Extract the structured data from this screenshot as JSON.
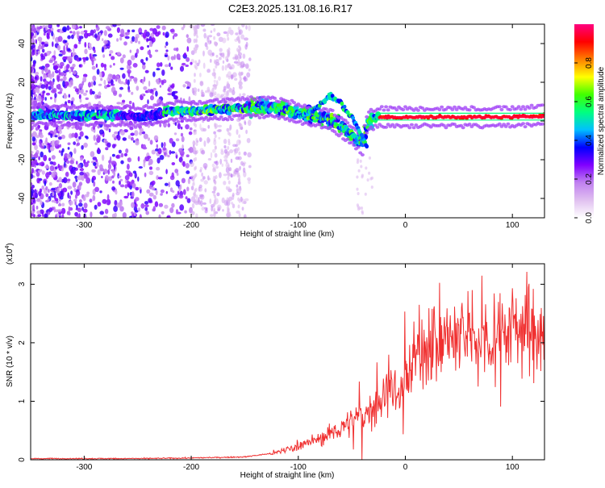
{
  "title": "C2E3.2025.131.08.16.R17",
  "colors": {
    "snr_line": "#f03030",
    "axis": "#000000",
    "background": "#ffffff",
    "colorbar_stops": [
      "#ffffff",
      "#e0c0f0",
      "#c080f0",
      "#8000ff",
      "#0000ff",
      "#00c0ff",
      "#00ff80",
      "#40ff00",
      "#ffff00",
      "#ff8000",
      "#ff0000",
      "#ff0080"
    ]
  },
  "chart_data": [
    {
      "type": "heatmap",
      "xlabel": "Height of straight line (km)",
      "ylabel": "Frequency (Hz)",
      "xlim": [
        -350,
        130
      ],
      "ylim": [
        -50,
        50
      ],
      "xticks": [
        -300,
        -200,
        -100,
        0,
        100
      ],
      "xtick_labels": [
        "-300",
        "-200",
        "-100",
        "0",
        "100"
      ],
      "yticks": [
        -40,
        -20,
        0,
        20,
        40
      ],
      "ytick_labels": [
        "-40",
        "-20",
        "0",
        "20",
        "40"
      ],
      "colorbar": {
        "label": "Normalized spectral amplitude",
        "range": [
          0,
          1
        ],
        "ticks": [
          0.0,
          0.2,
          0.4,
          0.6,
          0.8
        ],
        "tick_labels": [
          "0.0",
          "0.2",
          "0.4",
          "0.6",
          "0.8"
        ]
      },
      "trace": {
        "x": [
          -345,
          -300,
          -270,
          -250,
          -220,
          -200,
          -170,
          -145,
          -125,
          -105,
          -85,
          -70,
          -60,
          -50,
          -40,
          -35,
          -25,
          -10,
          0,
          50,
          100,
          130
        ],
        "y": [
          3,
          3,
          3,
          2,
          5,
          5,
          6,
          7,
          7,
          5,
          2,
          1,
          -3,
          -7,
          -12,
          0,
          2,
          2,
          2,
          2,
          2,
          3
        ]
      },
      "secondary_branch": {
        "x": [
          -100,
          -85,
          -70,
          -60,
          -50,
          -40,
          -36
        ],
        "y": [
          2,
          6,
          13,
          9,
          2,
          -8,
          -13
        ]
      }
    },
    {
      "type": "line",
      "xlabel": "Height of straight line (km)",
      "ylabel": "SNR (10 * v/v)",
      "y_multiplier_label": "(x10",
      "y_multiplier_exp": "4",
      "y_multiplier_close": ")",
      "xlim": [
        -350,
        130
      ],
      "ylim": [
        0,
        3.35
      ],
      "xticks": [
        -300,
        -200,
        -100,
        0,
        100
      ],
      "xtick_labels": [
        "-300",
        "-200",
        "-100",
        "0",
        "100"
      ],
      "yticks": [
        0,
        1,
        2,
        3
      ],
      "ytick_labels": [
        "0",
        "1",
        "2",
        "3"
      ],
      "series": [
        {
          "x": [
            -350,
            -300,
            -250,
            -200,
            -150,
            -120,
            -100,
            -80,
            -60,
            -40,
            -30,
            -20,
            -15,
            -10,
            -5,
            0,
            10,
            20,
            30,
            50,
            70,
            90,
            100,
            110,
            120,
            130
          ],
          "y": [
            0.02,
            0.02,
            0.02,
            0.03,
            0.05,
            0.12,
            0.25,
            0.35,
            0.55,
            0.75,
            0.9,
            1.1,
            1.3,
            1.2,
            1.0,
            1.5,
            1.8,
            1.9,
            2.0,
            2.1,
            2.1,
            2.2,
            2.3,
            2.3,
            2.2,
            2.0
          ]
        }
      ]
    }
  ]
}
